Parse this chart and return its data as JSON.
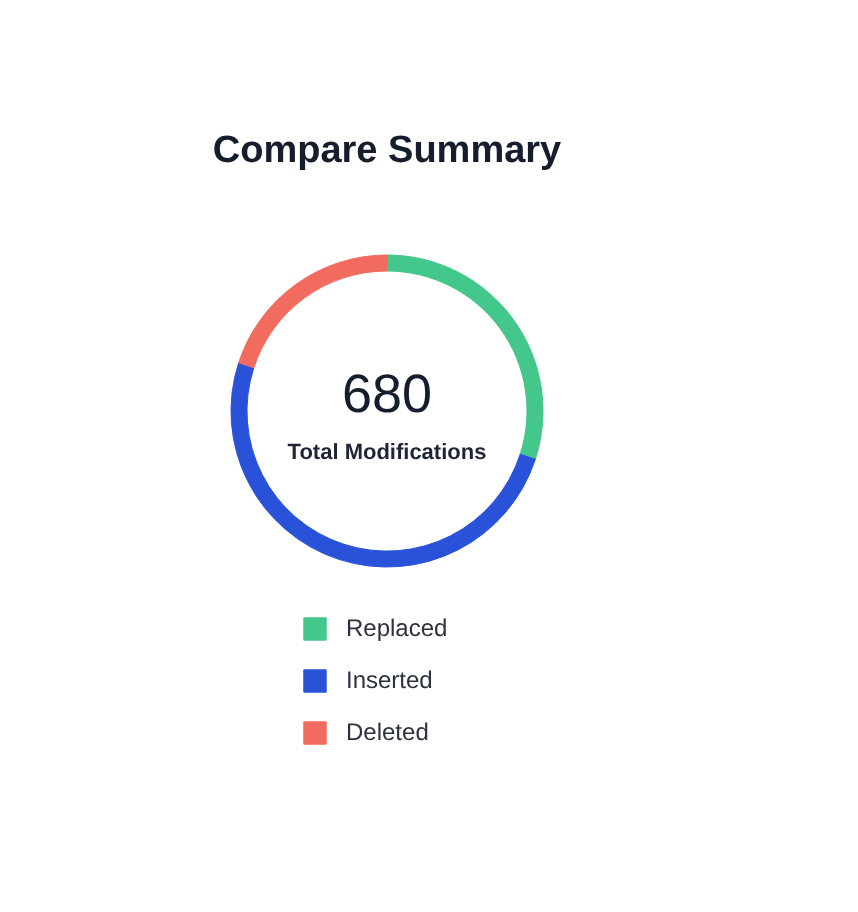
{
  "chart_data": {
    "type": "donut",
    "title": "Compare Summary",
    "categories": [
      "Replaced",
      "Inserted",
      "Deleted"
    ],
    "values": [
      30,
      50,
      20
    ],
    "colors": [
      "#44c78b",
      "#2952d9",
      "#f26b5f"
    ],
    "annotations": [
      "680",
      "Total Modifications"
    ],
    "legend": "bottom"
  }
}
